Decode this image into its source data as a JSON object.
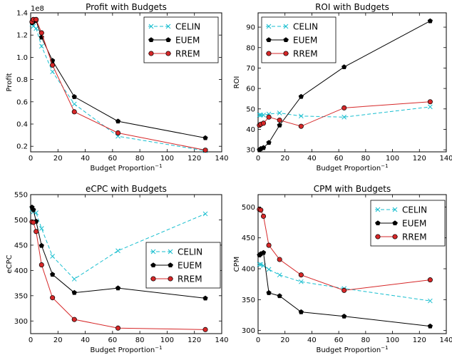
{
  "chart_data": [
    {
      "type": "line",
      "title": "Profit with Budgets",
      "xlabel": "Budget Proportion",
      "xlabel_sup": "−1",
      "ylabel": "Profit",
      "offset_label": "1e8",
      "xlim": [
        0,
        140
      ],
      "ylim": [
        0.15,
        1.4
      ],
      "xticks": [
        0,
        20,
        40,
        60,
        80,
        100,
        120,
        140
      ],
      "yticks": [
        0.2,
        0.4,
        0.6,
        0.8,
        1.0,
        1.2,
        1.4
      ],
      "ytick_labels": [
        "0.2",
        "0.4",
        "0.6",
        "0.8",
        "1.0",
        "1.2",
        "1.4"
      ],
      "legend_position": "top-right",
      "x": [
        1,
        2,
        4,
        8,
        16,
        32,
        64,
        128
      ],
      "series": [
        {
          "name": "CELIN",
          "values": [
            1.3,
            1.28,
            1.26,
            1.1,
            0.87,
            0.58,
            0.29,
            0.16
          ]
        },
        {
          "name": "EUEM",
          "values": [
            1.31,
            1.32,
            1.33,
            1.18,
            0.97,
            0.645,
            0.425,
            0.275
          ]
        },
        {
          "name": "RREM",
          "values": [
            1.32,
            1.34,
            1.34,
            1.22,
            0.93,
            0.51,
            0.32,
            0.165
          ]
        }
      ]
    },
    {
      "type": "line",
      "title": "ROI with Budgets",
      "xlabel": "Budget Proportion",
      "xlabel_sup": "−1",
      "ylabel": "ROI",
      "xlim": [
        0,
        140
      ],
      "ylim": [
        29,
        97
      ],
      "xticks": [
        0,
        20,
        40,
        60,
        80,
        100,
        120,
        140
      ],
      "yticks": [
        30,
        40,
        50,
        60,
        70,
        80,
        90
      ],
      "ytick_labels": [
        "30",
        "40",
        "50",
        "60",
        "70",
        "80",
        "90"
      ],
      "legend_position": "top-left",
      "x": [
        1,
        2,
        4,
        8,
        16,
        32,
        64,
        128
      ],
      "series": [
        {
          "name": "CELIN",
          "values": [
            47,
            47,
            47,
            47.5,
            48,
            46.5,
            46,
            51
          ]
        },
        {
          "name": "EUEM",
          "values": [
            30,
            30.5,
            31,
            33.5,
            42,
            56,
            70.5,
            93
          ]
        },
        {
          "name": "RREM",
          "values": [
            42,
            42.5,
            43,
            46,
            44.5,
            41.5,
            50.5,
            53.5
          ]
        }
      ]
    },
    {
      "type": "line",
      "title": "eCPC with Budgets",
      "xlabel": "Budget Proportion",
      "xlabel_sup": "−1",
      "ylabel": "eCPC",
      "xlim": [
        0,
        140
      ],
      "ylim": [
        275,
        550
      ],
      "xticks": [
        0,
        20,
        40,
        60,
        80,
        100,
        120,
        140
      ],
      "yticks": [
        300,
        350,
        400,
        450,
        500,
        550
      ],
      "ytick_labels": [
        "300",
        "350",
        "400",
        "450",
        "500",
        "550"
      ],
      "legend_position": "center-right",
      "x": [
        1,
        2,
        4,
        8,
        16,
        32,
        64,
        128
      ],
      "series": [
        {
          "name": "CELIN",
          "values": [
            520,
            516,
            514,
            483,
            428,
            383,
            439,
            512
          ]
        },
        {
          "name": "EUEM",
          "values": [
            525,
            520,
            497,
            449,
            392,
            356,
            365,
            345
          ]
        },
        {
          "name": "RREM",
          "values": [
            496,
            495,
            477,
            411,
            346,
            303,
            286,
            283
          ]
        }
      ]
    },
    {
      "type": "line",
      "title": "CPM with Budgets",
      "xlabel": "Budget Proportion",
      "xlabel_sup": "−1",
      "ylabel": "CPM",
      "xlim": [
        0,
        140
      ],
      "ylim": [
        295,
        520
      ],
      "xticks": [
        0,
        20,
        40,
        60,
        80,
        100,
        120,
        140
      ],
      "yticks": [
        300,
        350,
        400,
        450,
        500
      ],
      "ytick_labels": [
        "300",
        "350",
        "400",
        "450",
        "500"
      ],
      "legend_position": "top-right",
      "x": [
        1,
        2,
        4,
        8,
        16,
        32,
        64,
        128
      ],
      "series": [
        {
          "name": "CELIN",
          "values": [
            407,
            407,
            405,
            399,
            390,
            379,
            368,
            348
          ]
        },
        {
          "name": "EUEM",
          "values": [
            422,
            424,
            426,
            361,
            356,
            330,
            323,
            307
          ]
        },
        {
          "name": "RREM",
          "values": [
            496,
            495,
            485,
            438,
            415,
            390,
            365,
            382
          ]
        }
      ]
    }
  ],
  "styles": {
    "CELIN": {
      "color": "#17becf",
      "marker": "x",
      "dash": "dashed"
    },
    "EUEM": {
      "color": "#000000",
      "marker": "pentagon",
      "dash": "solid"
    },
    "RREM": {
      "color": "#d62728",
      "marker": "circle",
      "dash": "solid"
    }
  }
}
